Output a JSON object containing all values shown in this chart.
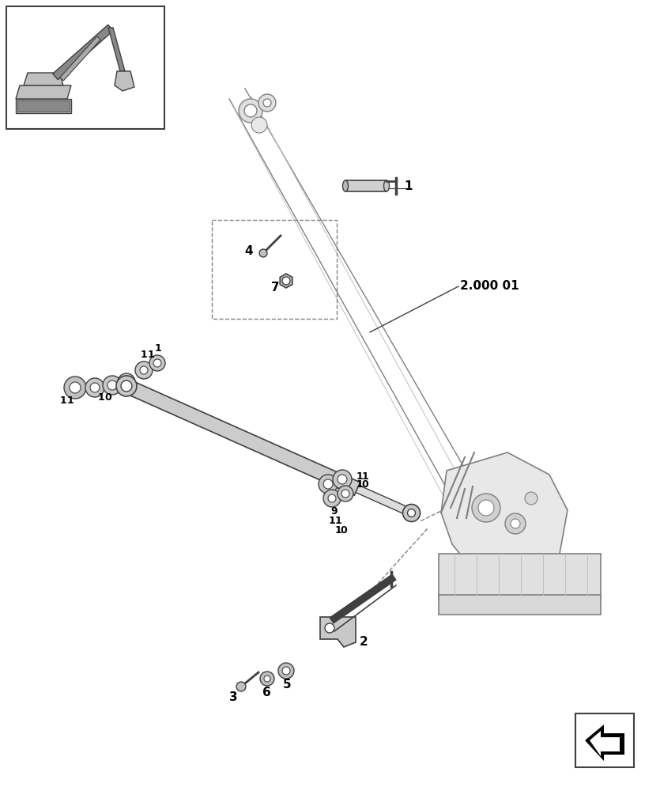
{
  "bg_color": "#ffffff",
  "line_color": "#808080",
  "dark_color": "#404040",
  "black": "#000000",
  "light_gray": "#c0c0c0",
  "border_color": "#999999",
  "label_2000_01": "2.000 01",
  "figsize": [
    8.16,
    10.0
  ],
  "dpi": 100
}
